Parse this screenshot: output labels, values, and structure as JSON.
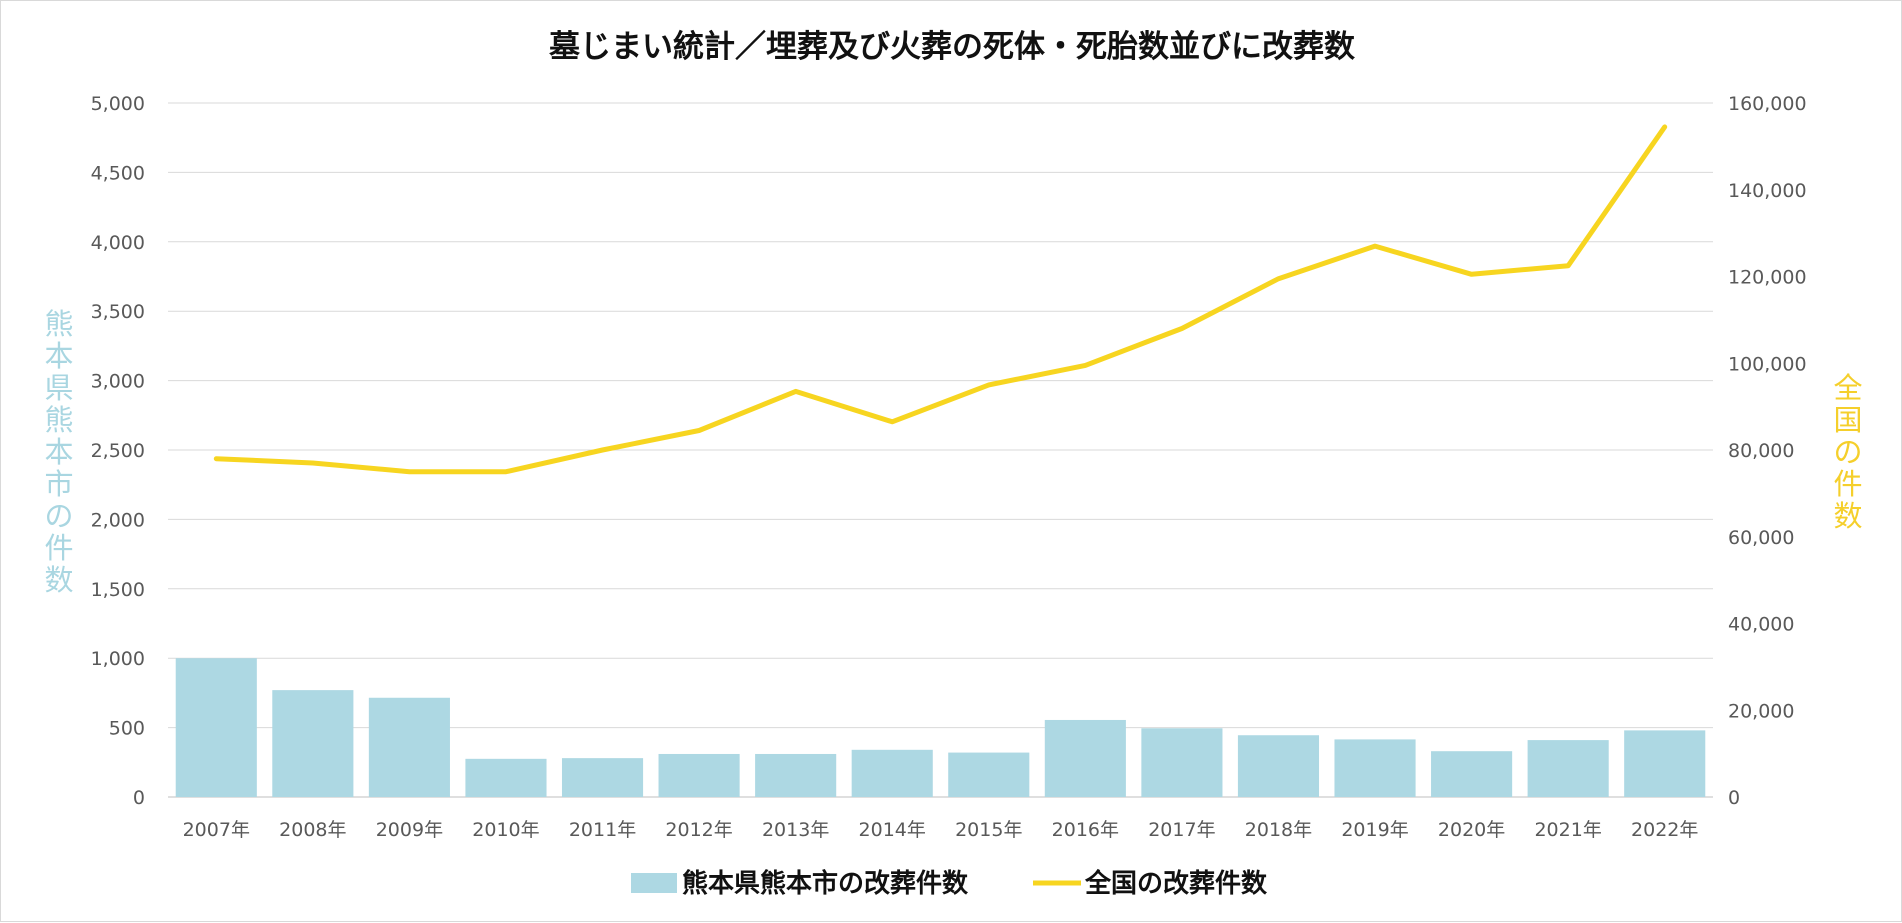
{
  "chart_data": {
    "type": "bar+line",
    "title": "墓じまい統計／埋葬及び火葬の死体・死胎数並びに改葬数",
    "categories": [
      "2007年",
      "2008年",
      "2009年",
      "2010年",
      "2011年",
      "2012年",
      "2013年",
      "2014年",
      "2015年",
      "2016年",
      "2017年",
      "2018年",
      "2019年",
      "2020年",
      "2021年",
      "2022年"
    ],
    "series": [
      {
        "name": "熊本県熊本市の改葬件数",
        "type": "bar",
        "axis": "left",
        "color": "#add8e3",
        "values": [
          1000,
          770,
          715,
          275,
          280,
          310,
          310,
          340,
          320,
          555,
          495,
          445,
          415,
          330,
          410,
          480
        ]
      },
      {
        "name": "全国の改葬件数",
        "type": "line",
        "axis": "right",
        "color": "#f7d520",
        "values": [
          78000,
          77000,
          75000,
          75000,
          80000,
          84500,
          93500,
          86500,
          95000,
          99500,
          108000,
          119500,
          127000,
          120500,
          122500,
          154500
        ]
      }
    ],
    "y_left": {
      "label": "熊本県熊本市の件数",
      "range": [
        0,
        5000
      ],
      "ticks": [
        0,
        500,
        1000,
        1500,
        2000,
        2500,
        3000,
        3500,
        4000,
        4500,
        5000
      ],
      "tick_labels": [
        "0",
        "500",
        "1,000",
        "1,500",
        "2,000",
        "2,500",
        "3,000",
        "3,500",
        "4,000",
        "4,500",
        "5,000"
      ]
    },
    "y_right": {
      "label": "全国の件数",
      "range": [
        0,
        160000
      ],
      "ticks": [
        0,
        20000,
        40000,
        60000,
        80000,
        100000,
        120000,
        140000,
        160000
      ],
      "tick_labels": [
        "0",
        "20,000",
        "40,000",
        "60,000",
        "80,000",
        "100,000",
        "120,000",
        "140,000",
        "160,000"
      ]
    },
    "grid": true,
    "legend_position": "bottom"
  }
}
